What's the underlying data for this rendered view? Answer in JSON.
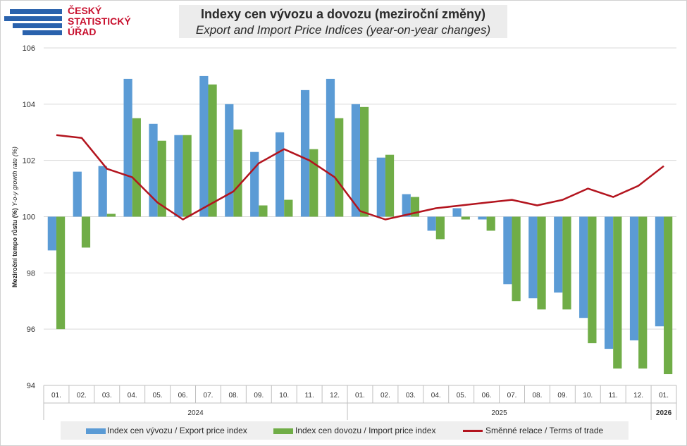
{
  "logo": {
    "line1": "ČESKÝ",
    "line2": "STATISTICKÝ",
    "line3": "ÚŘAD"
  },
  "colors": {
    "export": "#5b9bd5",
    "import": "#70ad47",
    "terms": "#b3141e",
    "grid": "#d9d9d9",
    "logo_blue": "#2a62ad",
    "logo_red": "#c8102e"
  },
  "chart_data": {
    "type": "bar",
    "title": "Indexy cen vývozu a dovozu (meziroční změny)",
    "subtitle": "Export and Import Price Indices (year-on-year changes)",
    "ylabel_main": "Meziroční tempo růstu (%) ",
    "ylabel_sub": "Y-o-y growth rate (%)",
    "xlabel": "",
    "ylim": [
      94,
      106
    ],
    "yticks": [
      94,
      96,
      98,
      100,
      102,
      104,
      106
    ],
    "baseline": 100,
    "grid": true,
    "legend_position": "bottom",
    "categories": [
      "01.",
      "02.",
      "03.",
      "04.",
      "05.",
      "06.",
      "07.",
      "08.",
      "09.",
      "10.",
      "11.",
      "12.",
      "01.",
      "02.",
      "03.",
      "04.",
      "05.",
      "06.",
      "07.",
      "08.",
      "09.",
      "10.",
      "11.",
      "12.",
      "01."
    ],
    "year_groups": [
      {
        "label": "2024",
        "count": 12
      },
      {
        "label": "2025",
        "count": 12
      },
      {
        "label": "2026",
        "count": 1
      }
    ],
    "series": [
      {
        "name": "Index cen vývozu / Export price index",
        "kind": "bar",
        "values": [
          98.8,
          101.6,
          101.8,
          104.9,
          103.3,
          102.9,
          105.0,
          104.0,
          102.3,
          103.0,
          104.5,
          104.9,
          104.0,
          102.1,
          100.8,
          99.5,
          100.3,
          99.9,
          97.6,
          97.1,
          97.3,
          96.4,
          95.3,
          95.6,
          96.1
        ]
      },
      {
        "name": "Index cen dovozu / Import price index",
        "kind": "bar",
        "values": [
          96.0,
          98.9,
          100.1,
          103.5,
          102.7,
          102.9,
          104.7,
          103.1,
          100.4,
          100.6,
          102.4,
          103.5,
          103.9,
          102.2,
          100.7,
          99.2,
          99.9,
          99.5,
          97.0,
          96.7,
          96.7,
          95.5,
          94.6,
          94.6,
          94.4
        ]
      },
      {
        "name": "Směnné relace / Terms of trade",
        "kind": "line",
        "values": [
          102.9,
          102.8,
          101.7,
          101.4,
          100.5,
          99.9,
          100.4,
          100.9,
          101.9,
          102.4,
          102.0,
          101.4,
          100.2,
          99.9,
          100.1,
          100.3,
          100.4,
          100.5,
          100.6,
          100.4,
          100.6,
          101.0,
          100.7,
          101.1,
          101.8
        ]
      }
    ]
  }
}
